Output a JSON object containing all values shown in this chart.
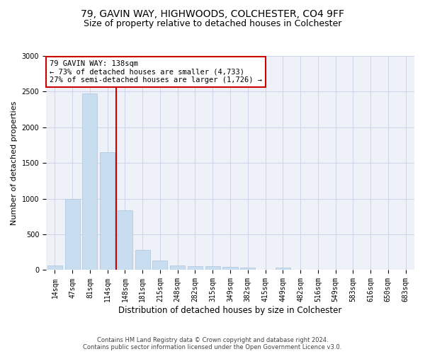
{
  "title_line1": "79, GAVIN WAY, HIGHWOODS, COLCHESTER, CO4 9FF",
  "title_line2": "Size of property relative to detached houses in Colchester",
  "xlabel": "Distribution of detached houses by size in Colchester",
  "ylabel": "Number of detached properties",
  "footer_line1": "Contains HM Land Registry data © Crown copyright and database right 2024.",
  "footer_line2": "Contains public sector information licensed under the Open Government Licence v3.0.",
  "categories": [
    "14sqm",
    "47sqm",
    "81sqm",
    "114sqm",
    "148sqm",
    "181sqm",
    "215sqm",
    "248sqm",
    "282sqm",
    "315sqm",
    "349sqm",
    "382sqm",
    "415sqm",
    "449sqm",
    "482sqm",
    "516sqm",
    "549sqm",
    "583sqm",
    "616sqm",
    "650sqm",
    "683sqm"
  ],
  "values": [
    60,
    1000,
    2470,
    1650,
    840,
    280,
    130,
    65,
    55,
    50,
    40,
    35,
    0,
    30,
    0,
    0,
    0,
    0,
    0,
    0,
    0
  ],
  "bar_color": "#c9ddf0",
  "bar_edge_color": "#aac4dc",
  "vline_x": 3.5,
  "vline_color": "#cc0000",
  "annotation_text": "79 GAVIN WAY: 138sqm\n← 73% of detached houses are smaller (4,733)\n27% of semi-detached houses are larger (1,726) →",
  "annotation_box_color": "white",
  "annotation_box_edge": "#cc0000",
  "ylim": [
    0,
    3000
  ],
  "yticks": [
    0,
    500,
    1000,
    1500,
    2000,
    2500,
    3000
  ],
  "grid_color": "#ccd6e8",
  "bg_color": "#eef2f8",
  "title_fontsize": 10,
  "subtitle_fontsize": 9,
  "xlabel_fontsize": 8.5,
  "ylabel_fontsize": 8,
  "tick_fontsize": 7,
  "annotation_fontsize": 7.5,
  "footer_fontsize": 6
}
